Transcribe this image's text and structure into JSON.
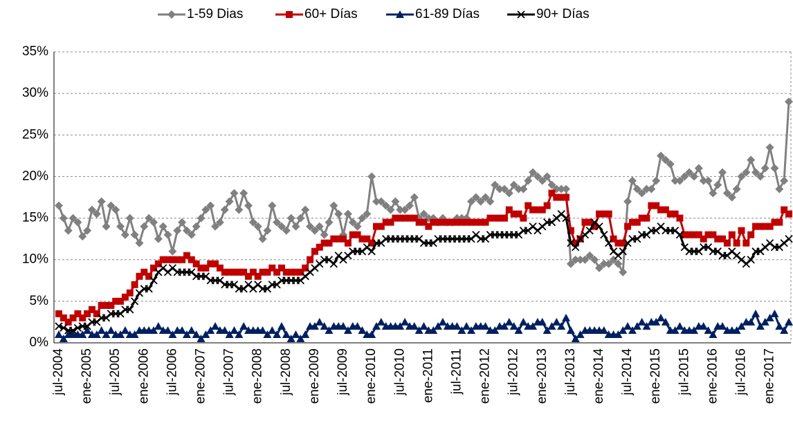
{
  "chart_data": {
    "type": "line",
    "categories": [
      "jul-2004",
      null,
      null,
      null,
      null,
      null,
      "ene-2005",
      null,
      null,
      null,
      null,
      null,
      "jul-2005",
      null,
      null,
      null,
      null,
      null,
      "ene-2006",
      null,
      null,
      null,
      null,
      null,
      "jul-2006",
      null,
      null,
      null,
      null,
      null,
      "ene-2007",
      null,
      null,
      null,
      null,
      null,
      "jul-2007",
      null,
      null,
      null,
      null,
      null,
      "ene-2008",
      null,
      null,
      null,
      null,
      null,
      "jul-2008",
      null,
      null,
      null,
      null,
      null,
      "ene-2009",
      null,
      null,
      null,
      null,
      null,
      "jul-2009",
      null,
      null,
      null,
      null,
      null,
      "ene-2010",
      null,
      null,
      null,
      null,
      null,
      "jul-2010",
      null,
      null,
      null,
      null,
      null,
      "ene-2011",
      null,
      null,
      null,
      null,
      null,
      "jul-2011",
      null,
      null,
      null,
      null,
      null,
      "ene-2012",
      null,
      null,
      null,
      null,
      null,
      "jul-2012",
      null,
      null,
      null,
      null,
      null,
      "ene-2013",
      null,
      null,
      null,
      null,
      null,
      "jul-2013",
      null,
      null,
      null,
      null,
      null,
      "ene-2014",
      null,
      null,
      null,
      null,
      null,
      "jul-2014",
      null,
      null,
      null,
      null,
      null,
      "ene-2015",
      null,
      null,
      null,
      null,
      null,
      "jul-2015",
      null,
      null,
      null,
      null,
      null,
      "ene-2016",
      null,
      null,
      null,
      null,
      null,
      "jul-2016",
      null,
      null,
      null,
      null,
      null,
      "ene-2017",
      null,
      null,
      null,
      null
    ],
    "series": [
      {
        "name": "1-59 Dias",
        "color": "#808080",
        "marker": "diamond",
        "values": [
          16.5,
          15,
          13.5,
          15,
          14.5,
          12.8,
          13.5,
          16,
          15.5,
          17,
          14,
          16.5,
          16,
          14,
          13,
          15,
          13,
          12,
          14,
          15,
          14.5,
          12.5,
          14,
          13,
          11,
          13.5,
          14.5,
          13.5,
          13,
          14,
          15,
          16,
          16.5,
          14,
          14.5,
          16,
          17,
          18,
          16,
          18,
          16.5,
          14.5,
          14,
          12.5,
          13.5,
          16.5,
          14.5,
          14,
          13.5,
          15,
          14,
          15,
          16,
          14,
          13.5,
          14,
          13,
          14.5,
          16.5,
          15.5,
          13,
          15.5,
          14.5,
          14,
          15,
          15.5,
          20,
          17,
          17,
          16.5,
          16,
          17,
          16,
          16,
          16.5,
          17.5,
          15,
          15.5,
          15,
          15,
          14.5,
          15,
          14.5,
          14.5,
          15,
          15,
          15,
          17,
          17.5,
          17,
          17.5,
          17,
          19,
          18.5,
          18.5,
          18,
          19,
          18.5,
          18.5,
          19.5,
          20.5,
          20,
          19.5,
          20,
          19,
          18.5,
          18.5,
          18.5,
          9.5,
          10,
          10,
          10,
          10.5,
          10,
          9,
          9.5,
          9.5,
          10,
          9.5,
          8.5,
          17,
          19.5,
          18.5,
          18,
          18.5,
          18.5,
          19.5,
          22.5,
          22,
          21.5,
          19.5,
          19.5,
          20,
          20.5,
          20,
          21,
          19.5,
          19.5,
          18,
          19,
          20.5,
          18,
          17.5,
          18.5,
          20,
          20.5,
          22,
          20.5,
          20,
          21,
          23.5,
          21,
          18.5,
          19.5,
          29
        ]
      },
      {
        "name": "60+ Días",
        "color": "#c00000",
        "marker": "square",
        "values": [
          3.5,
          3,
          2.5,
          3,
          3.5,
          3,
          3.5,
          4,
          3.5,
          4.5,
          4.5,
          4.5,
          5,
          5,
          5.5,
          6,
          7,
          8,
          8.5,
          8,
          9,
          9.5,
          10,
          10,
          10,
          10,
          10,
          10.5,
          10,
          9.5,
          9,
          9,
          9.5,
          9.5,
          9,
          8.5,
          8.5,
          8.5,
          8.5,
          8.5,
          8,
          8.5,
          8,
          8.5,
          8.5,
          9,
          8.5,
          9,
          8.5,
          8.5,
          8.5,
          8.5,
          9,
          10,
          11,
          11.5,
          12,
          12,
          12.5,
          12.5,
          12.5,
          12,
          13,
          13,
          12.5,
          12.5,
          12,
          14,
          14,
          14.5,
          14.5,
          15,
          15,
          15,
          15,
          15,
          14.5,
          14.5,
          14,
          14.5,
          14.5,
          14.5,
          14.5,
          14.5,
          14.5,
          14.5,
          14.5,
          14.5,
          14.5,
          14.5,
          14.5,
          15,
          15,
          15,
          15,
          16,
          15.5,
          15.5,
          15,
          16.5,
          16,
          16,
          16,
          16.5,
          18,
          17.5,
          17.5,
          17.5,
          13.5,
          12,
          12.5,
          14.5,
          14.5,
          14,
          15.5,
          15.5,
          15.5,
          12.5,
          12,
          12,
          14,
          14.5,
          14.5,
          15,
          15,
          16.5,
          16.5,
          16,
          16,
          15.5,
          15.5,
          15,
          13,
          13,
          13,
          13,
          12.5,
          13,
          13,
          12.5,
          12.5,
          12,
          13,
          12,
          13.5,
          12,
          13,
          14,
          14,
          14,
          14,
          14.5,
          14.5,
          16,
          15.5
        ]
      },
      {
        "name": "61-89 Días",
        "color": "#002060",
        "marker": "triangle",
        "values": [
          1,
          0.5,
          1,
          1,
          1,
          1,
          1.5,
          1,
          1,
          1.5,
          1,
          1.5,
          1,
          1,
          1.5,
          1,
          1,
          1.5,
          1.5,
          1.5,
          1.5,
          2,
          1.5,
          1.5,
          1,
          1.5,
          1.5,
          1,
          1.5,
          1,
          0.5,
          1,
          1.5,
          2,
          1.5,
          1.5,
          1,
          1.5,
          1,
          2,
          1.5,
          1.5,
          1.5,
          1.5,
          1,
          1.5,
          1,
          2,
          1,
          0.5,
          1,
          0.5,
          1,
          2,
          2,
          2.5,
          2,
          1.5,
          2,
          2,
          2,
          1.5,
          2,
          2,
          1.5,
          1,
          1,
          2,
          2.5,
          2,
          2,
          2,
          2,
          2.5,
          2,
          2,
          1.5,
          2,
          1.5,
          1.5,
          2,
          2.5,
          2,
          2,
          2,
          1.5,
          2,
          1.5,
          2,
          2,
          2,
          1.5,
          1.5,
          2,
          2,
          2.5,
          2,
          1.5,
          2.5,
          2,
          2,
          2.5,
          2.5,
          1.5,
          2,
          2.5,
          2,
          3,
          1.5,
          0.5,
          1,
          1.5,
          1.5,
          1.5,
          1.5,
          1.5,
          1,
          1,
          1,
          1.5,
          2,
          1.5,
          2,
          2.5,
          2,
          2.5,
          2.5,
          3,
          2.5,
          1.5,
          1.5,
          2,
          1.5,
          1.5,
          1.5,
          2,
          2,
          1.5,
          1,
          2,
          2,
          1.5,
          1.5,
          1.5,
          2,
          2.5,
          2.5,
          3.5,
          2,
          2.5,
          3,
          3.5,
          2,
          1.5,
          2.5
        ]
      },
      {
        "name": "90+ Días",
        "color": "#000000",
        "marker": "x",
        "values": [
          2,
          1.8,
          1.5,
          1.5,
          1.8,
          2,
          2,
          2.5,
          2.5,
          3,
          3,
          3.5,
          3.5,
          3.5,
          4,
          4,
          5,
          6,
          6.5,
          6.5,
          7.5,
          8.5,
          9,
          8.5,
          9,
          8.5,
          8.5,
          8.5,
          8.5,
          8,
          8,
          8,
          7.5,
          7.5,
          7.5,
          7,
          7,
          7,
          6.5,
          6.5,
          7,
          6.5,
          7,
          6.5,
          6.5,
          7,
          7,
          7.5,
          7.5,
          7.5,
          7.5,
          7.5,
          8,
          8.5,
          9,
          9.5,
          10,
          10,
          9.5,
          10.5,
          10,
          10.5,
          11,
          11,
          11,
          11.5,
          11,
          12,
          12,
          12.5,
          12.5,
          12.5,
          12.5,
          12.5,
          12.5,
          12.5,
          12.5,
          12,
          12,
          12,
          12.5,
          12.5,
          12.5,
          12.5,
          12.5,
          12.5,
          12.5,
          12.5,
          13,
          12.5,
          12.5,
          13,
          13,
          13,
          13,
          13,
          13,
          13,
          13.5,
          13.5,
          14,
          13.5,
          14,
          14.5,
          14.5,
          15,
          15.5,
          15,
          12,
          11.5,
          12.5,
          13,
          13.5,
          14.5,
          14,
          13,
          12,
          11,
          10.5,
          11,
          12,
          12.5,
          12.5,
          13,
          13,
          13.5,
          13.5,
          14,
          13.5,
          13.5,
          13.5,
          13,
          11.5,
          11,
          11,
          11,
          11.5,
          11.5,
          11,
          11,
          10.5,
          10.5,
          11,
          10.5,
          10,
          9.5,
          10,
          11,
          11,
          11.5,
          12,
          11.5,
          11.5,
          12,
          12.5
        ]
      }
    ],
    "ylim": [
      0,
      35
    ],
    "yticks": [
      {
        "value": 0,
        "label": "0%"
      },
      {
        "value": 5,
        "label": "5%"
      },
      {
        "value": 10,
        "label": "10%"
      },
      {
        "value": 15,
        "label": "15%"
      },
      {
        "value": 20,
        "label": "20%"
      },
      {
        "value": 25,
        "label": "25%"
      },
      {
        "value": 30,
        "label": "30%"
      },
      {
        "value": 35,
        "label": "35%"
      }
    ],
    "grid": true,
    "legend": "top"
  }
}
